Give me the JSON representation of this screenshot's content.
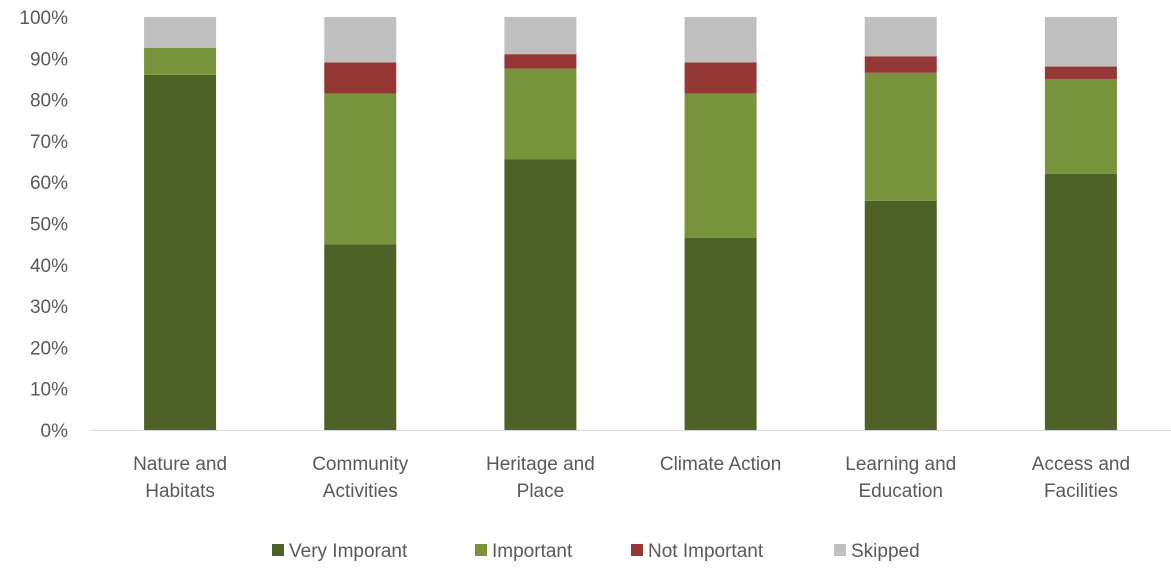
{
  "chart_data": {
    "type": "bar",
    "stacked": true,
    "percent": true,
    "categories": [
      [
        "Nature and",
        "Habitats"
      ],
      [
        "Community",
        "Activities"
      ],
      [
        "Heritage and",
        "Place"
      ],
      [
        "Climate Action"
      ],
      [
        "Learning and",
        "Education"
      ],
      [
        "Access and",
        "Facilities"
      ]
    ],
    "series": [
      {
        "name": "Very Imporant",
        "color": "#4e6228",
        "values": [
          86,
          45,
          65.5,
          46.5,
          55.5,
          62
        ]
      },
      {
        "name": "Important",
        "color": "#77933c",
        "values": [
          6.5,
          36.5,
          22,
          35,
          31,
          23
        ]
      },
      {
        "name": "Not Important",
        "color": "#953735",
        "values": [
          0,
          7.5,
          3.5,
          7.5,
          4,
          3
        ]
      },
      {
        "name": "Skipped",
        "color": "#bfbfbf",
        "values": [
          7.5,
          11,
          9,
          11,
          9.5,
          12
        ]
      }
    ],
    "ylim": [
      0,
      100
    ],
    "yticks": [
      "0%",
      "10%",
      "20%",
      "30%",
      "40%",
      "50%",
      "60%",
      "70%",
      "80%",
      "90%",
      "100%"
    ],
    "grid": false,
    "legend": "bottom",
    "axis_color": "#d9d9d9",
    "text_color": "#595959"
  }
}
